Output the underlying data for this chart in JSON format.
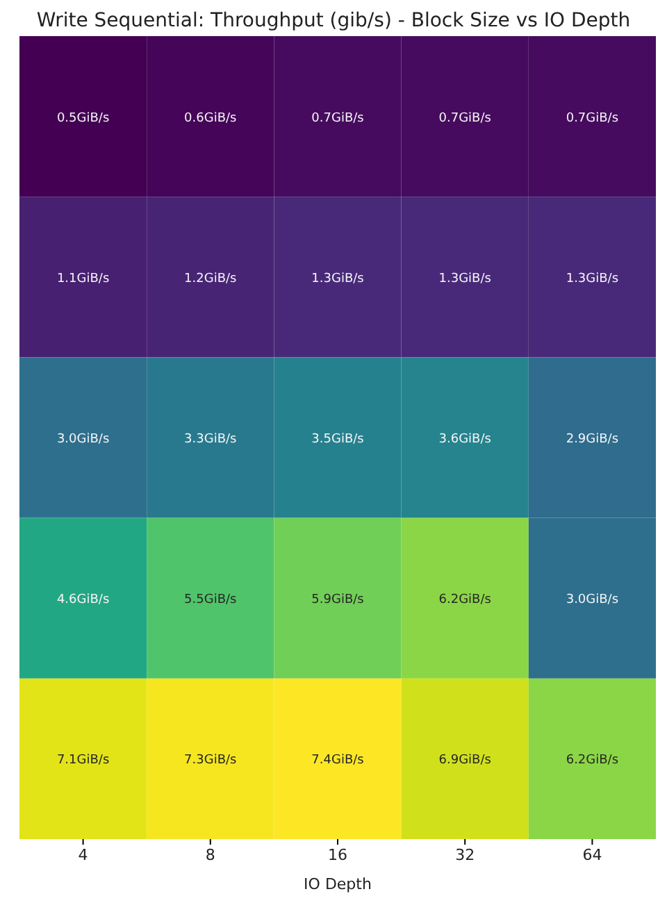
{
  "chart_data": {
    "type": "heatmap",
    "title": "Write Sequential: Throughput (gib/s) - Block Size vs IO Depth",
    "xlabel": "IO Depth",
    "categories": [
      "4",
      "8",
      "16",
      "32",
      "64"
    ],
    "y_categories": [
      null,
      null,
      null,
      null,
      null
    ],
    "cells": [
      [
        0.5,
        0.6,
        0.7,
        0.7,
        0.7
      ],
      [
        1.1,
        1.2,
        1.3,
        1.3,
        1.3
      ],
      [
        3.0,
        3.3,
        3.5,
        3.6,
        2.9
      ],
      [
        4.6,
        5.5,
        5.9,
        6.2,
        3.0
      ],
      [
        7.1,
        7.3,
        7.4,
        6.9,
        6.2
      ]
    ],
    "cell_labels": [
      [
        "0.5GiB/s",
        "0.6GiB/s",
        "0.7GiB/s",
        "0.7GiB/s",
        "0.7GiB/s"
      ],
      [
        "1.1GiB/s",
        "1.2GiB/s",
        "1.3GiB/s",
        "1.3GiB/s",
        "1.3GiB/s"
      ],
      [
        "3.0GiB/s",
        "3.3GiB/s",
        "3.5GiB/s",
        "3.6GiB/s",
        "2.9GiB/s"
      ],
      [
        "4.6GiB/s",
        "5.5GiB/s",
        "5.9GiB/s",
        "6.2GiB/s",
        "3.0GiB/s"
      ],
      [
        "7.1GiB/s",
        "7.3GiB/s",
        "7.4GiB/s",
        "6.9GiB/s",
        "6.2GiB/s"
      ]
    ]
  }
}
